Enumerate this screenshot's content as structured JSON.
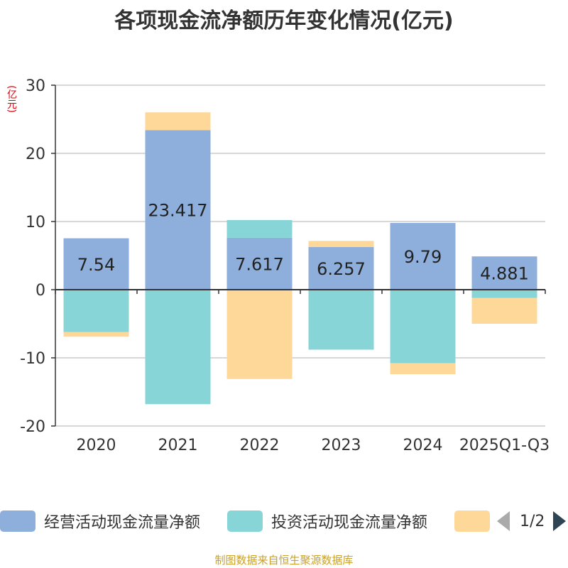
{
  "title": "各项现金流净额历年变化情况(亿元)",
  "unit_label": "(亿元)",
  "source": "制图数据来自恒生聚源数据库",
  "legend_page": "1/2",
  "chart_data": {
    "type": "bar",
    "stacked": true,
    "categories": [
      "2020",
      "2021",
      "2022",
      "2023",
      "2024",
      "2025Q1-Q3"
    ],
    "y_ticks": [
      "30",
      "20",
      "10",
      "0",
      "-10",
      "-20"
    ],
    "ylim": [
      -20,
      30
    ],
    "series": [
      {
        "name": "经营活动现金流量净额",
        "color": "#8eaedb",
        "values": [
          7.54,
          23.417,
          7.617,
          6.257,
          9.79,
          4.881
        ],
        "labels": [
          "7.54",
          "23.417",
          "7.617",
          "6.257",
          "9.79",
          "4.881"
        ]
      },
      {
        "name": "投资活动现金流量净额",
        "color": "#88d5d8",
        "values": [
          -6.2,
          -16.8,
          2.6,
          -8.8,
          -10.8,
          -1.2
        ]
      },
      {
        "name": "",
        "color": "#fdd898",
        "values": [
          -0.7,
          2.6,
          -13.1,
          0.9,
          -1.6,
          -3.8
        ]
      }
    ]
  }
}
